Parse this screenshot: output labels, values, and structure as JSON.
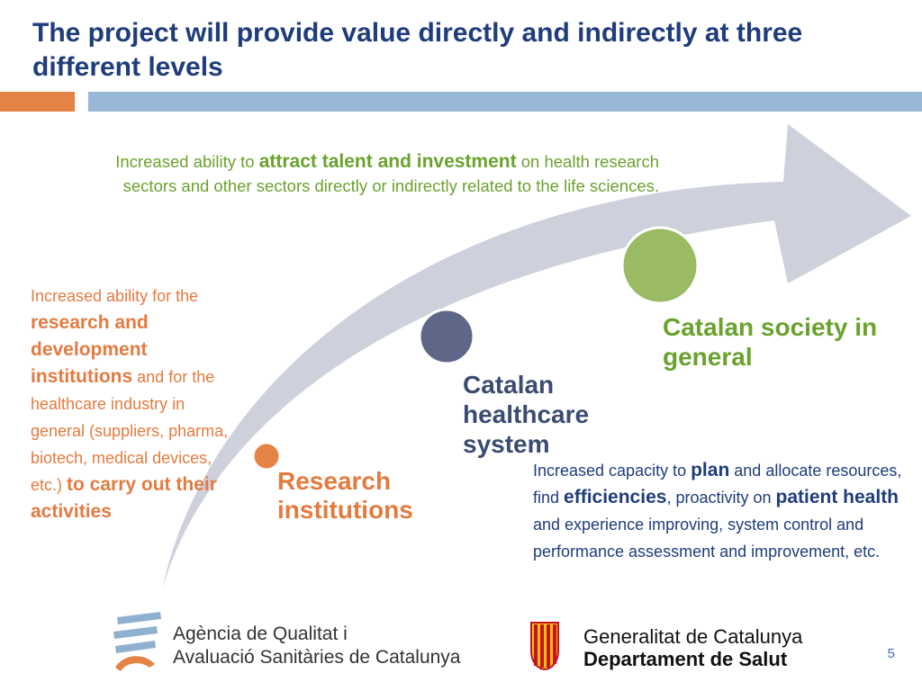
{
  "slide": {
    "title": "The project will provide value directly and indirectly at three different levels",
    "page_number": "5"
  },
  "levels": {
    "research": "Research institutions",
    "healthcare": "Catalan healthcare system",
    "society": "Catalan society in general"
  },
  "descriptions": {
    "top": {
      "p1": "Increased ability to ",
      "b1": "attract talent and investment",
      "p2": " on health research sectors and other sectors directly or indirectly related to the life sciences."
    },
    "left": {
      "p1": "Increased ability for the ",
      "b1": "research and development institutions",
      "p2": " and for the healthcare industry in general (suppliers, pharma, biotech, medical devices, etc.) ",
      "b2": "to carry out their activities"
    },
    "right": {
      "p1": "Increased capacity to ",
      "b1": "plan",
      "p2": " and allocate resources, find ",
      "b2": "efficiencies",
      "p3": ", proactivity on ",
      "b3": "patient health",
      "p4": " and experience improving, system control and performance assessment and improvement, etc."
    }
  },
  "logos": {
    "aqu_line1": "Agència de Qualitat i",
    "aqu_line2": "Avaluació Sanitàries de Catalunya",
    "gen_line1": "Generalitat de Catalunya",
    "gen_line2": "Departament de Salut"
  },
  "colors": {
    "title": "#1f3d7a",
    "orange": "#e27b40",
    "green": "#6aa22e",
    "navy": "#3b4b72",
    "arrow": "#ced1dc"
  }
}
